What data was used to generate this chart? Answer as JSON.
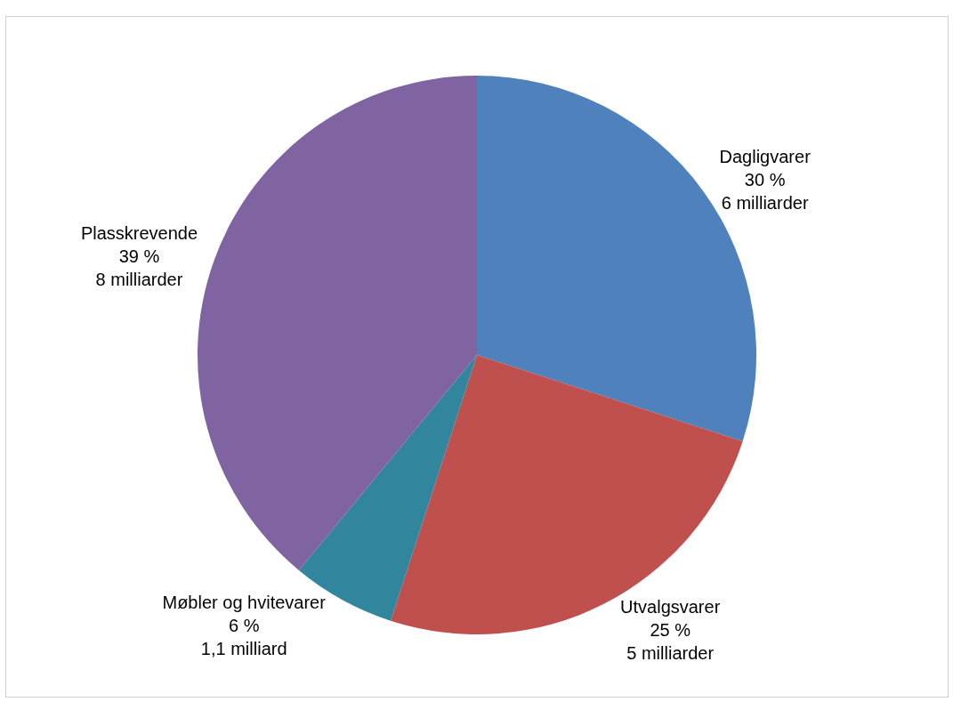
{
  "chart_data": {
    "type": "pie",
    "categories": [
      "Dagligvarer",
      "Utvalgsvarer",
      "Møbler og hvitevarer",
      "Plasskrevende"
    ],
    "values": [
      30,
      25,
      6,
      39
    ],
    "colors": [
      "#4f81bd",
      "#c0504d",
      "#31859c",
      "#8064a2"
    ],
    "value_labels": [
      "30 %\n6 milliarder",
      "25 %\n5 milliarder",
      "6 %\n1,1 milliard",
      "39 %\n8 milliarder"
    ],
    "legend": false
  }
}
